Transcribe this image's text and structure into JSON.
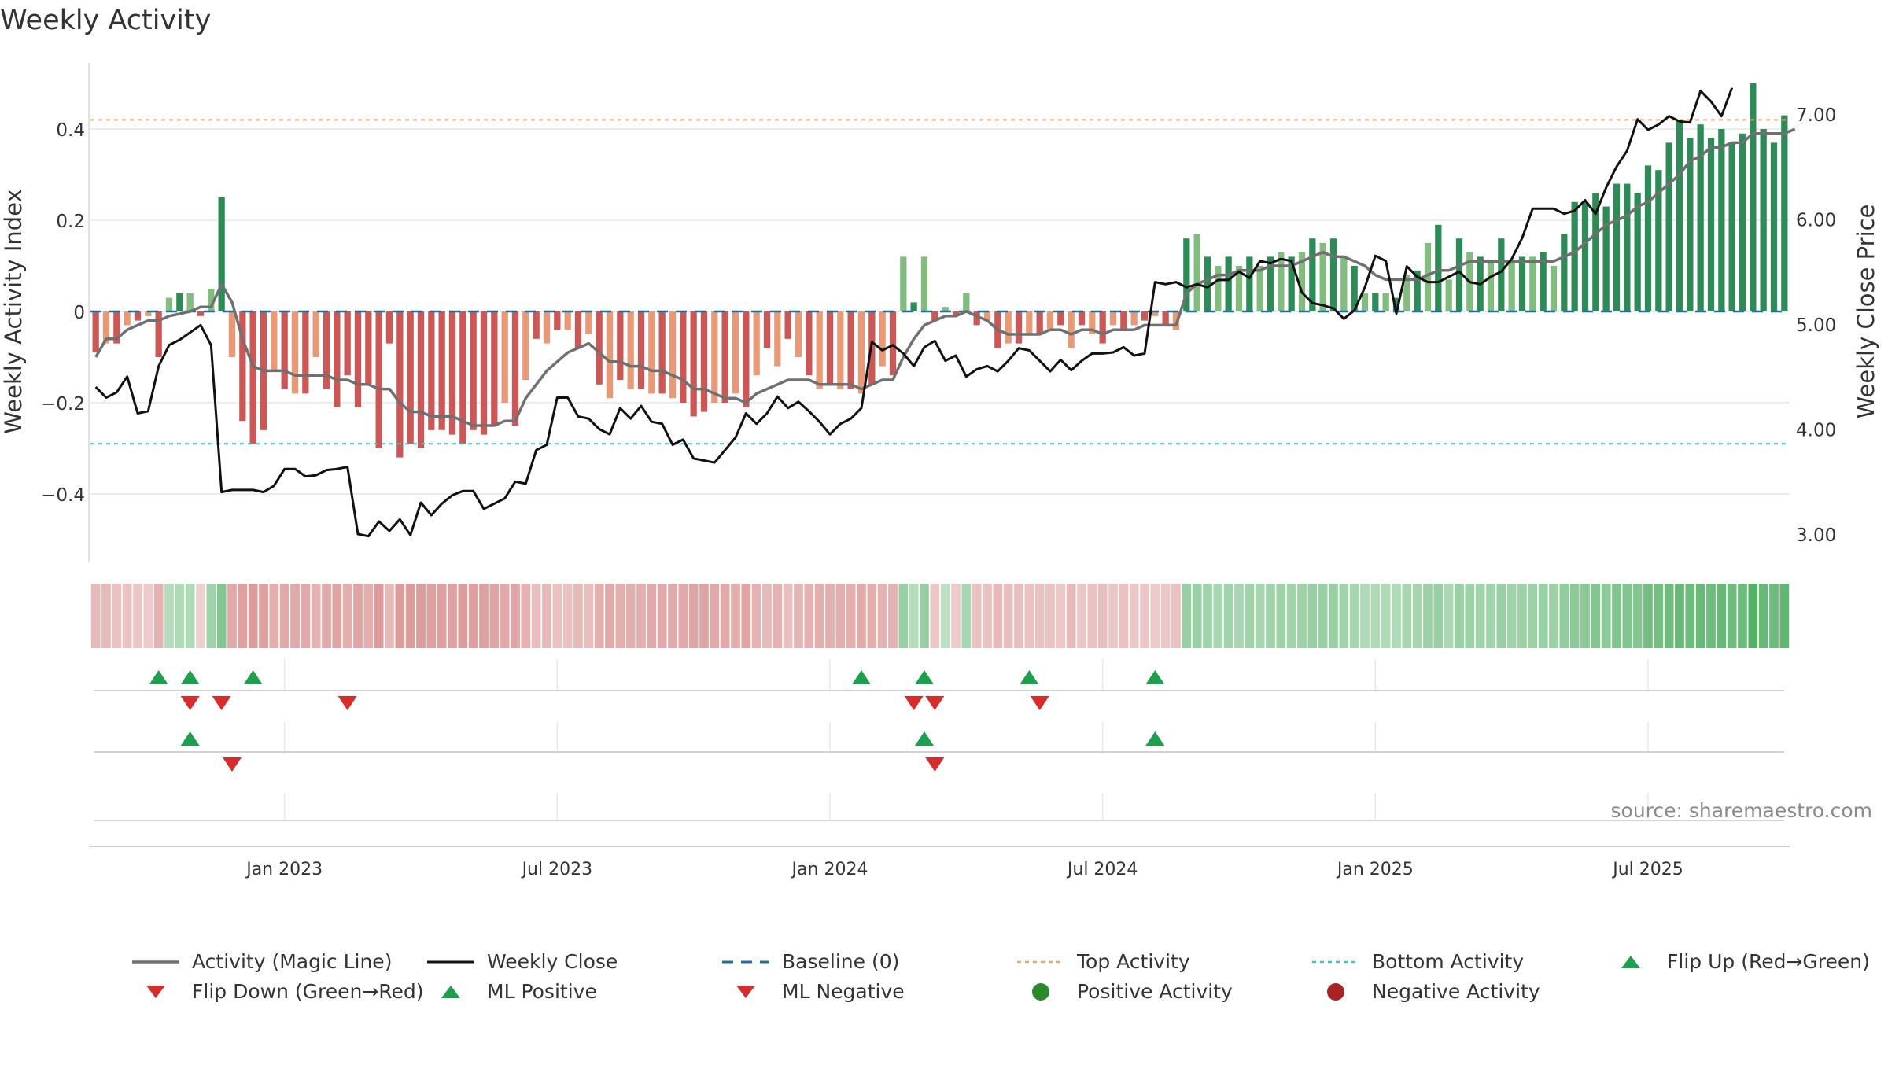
{
  "chart_data": {
    "type": "bar",
    "title": "Weekly Activity",
    "ylabel": "Weekly Activity Index",
    "y2label": "Weekly Close Price",
    "ylim": [
      -0.54,
      0.54
    ],
    "y2lim": [
      2.55,
      7.5
    ],
    "yticks": [
      {
        "value": 0.4,
        "label": "0.4"
      },
      {
        "value": 0.2,
        "label": "0.2"
      },
      {
        "value": 0,
        "label": "0"
      },
      {
        "value": -0.2,
        "label": "−0.2"
      },
      {
        "value": -0.4,
        "label": "−0.4"
      }
    ],
    "y2ticks": [
      {
        "value": 7.0,
        "label": "7.00"
      },
      {
        "value": 6.0,
        "label": "6.00"
      },
      {
        "value": 5.0,
        "label": "5.00"
      },
      {
        "value": 4.0,
        "label": "4.00"
      },
      {
        "value": 3.0,
        "label": "3.00"
      }
    ],
    "xticks": [
      {
        "week": 18,
        "label": "Jan 2023"
      },
      {
        "week": 44,
        "label": "Jul 2023"
      },
      {
        "week": 70,
        "label": "Jan 2024"
      },
      {
        "week": 96,
        "label": "Jul 2024"
      },
      {
        "week": 122,
        "label": "Jan 2025"
      },
      {
        "week": 148,
        "label": "Jul 2025"
      }
    ],
    "top_activity": 0.42,
    "bottom_activity": -0.29,
    "baseline": 0,
    "activity": [
      -0.09,
      -0.07,
      -0.07,
      -0.03,
      -0.02,
      -0.01,
      -0.1,
      0.03,
      0.04,
      0.04,
      -0.01,
      0.05,
      0.25,
      -0.1,
      -0.24,
      -0.29,
      -0.26,
      -0.13,
      -0.17,
      -0.18,
      -0.18,
      -0.1,
      -0.17,
      -0.21,
      -0.14,
      -0.21,
      -0.16,
      -0.3,
      -0.07,
      -0.32,
      -0.29,
      -0.3,
      -0.26,
      -0.26,
      -0.27,
      -0.29,
      -0.26,
      -0.27,
      -0.25,
      -0.2,
      -0.25,
      -0.15,
      -0.06,
      -0.07,
      -0.04,
      -0.04,
      -0.08,
      -0.05,
      -0.16,
      -0.19,
      -0.15,
      -0.17,
      -0.17,
      -0.18,
      -0.18,
      -0.19,
      -0.2,
      -0.23,
      -0.22,
      -0.2,
      -0.2,
      -0.18,
      -0.21,
      -0.14,
      -0.08,
      -0.12,
      -0.06,
      -0.1,
      -0.14,
      -0.17,
      -0.16,
      -0.17,
      -0.17,
      -0.18,
      -0.16,
      -0.12,
      -0.14,
      0.12,
      0.02,
      0.12,
      -0.02,
      0.01,
      -0.01,
      0.04,
      -0.03,
      -0.02,
      -0.08,
      -0.07,
      -0.07,
      -0.05,
      -0.05,
      -0.04,
      -0.03,
      -0.08,
      -0.03,
      -0.05,
      -0.07,
      -0.03,
      -0.04,
      -0.03,
      -0.02,
      -0.01,
      -0.03,
      -0.04,
      0.16,
      0.17,
      0.12,
      0.1,
      0.12,
      0.1,
      0.12,
      0.1,
      0.12,
      0.13,
      0.12,
      0.13,
      0.16,
      0.15,
      0.16,
      0.12,
      0.1,
      0.04,
      0.04,
      0.04,
      0.03,
      0.08,
      0.09,
      0.15,
      0.19,
      0.07,
      0.16,
      0.13,
      0.12,
      0.11,
      0.16,
      0.11,
      0.12,
      0.12,
      0.13,
      0.1,
      0.17,
      0.24,
      0.24,
      0.26,
      0.23,
      0.28,
      0.28,
      0.26,
      0.32,
      0.31,
      0.37,
      0.42,
      0.38,
      0.41,
      0.38,
      0.4,
      0.37,
      0.39,
      0.5,
      0.4,
      0.37,
      0.43
    ],
    "magic_line": [
      -0.1,
      -0.06,
      -0.06,
      -0.04,
      -0.03,
      -0.02,
      -0.02,
      -0.01,
      -0.005,
      0,
      0.01,
      0.01,
      0.06,
      0.02,
      -0.06,
      -0.12,
      -0.13,
      -0.13,
      -0.13,
      -0.14,
      -0.14,
      -0.14,
      -0.14,
      -0.15,
      -0.15,
      -0.16,
      -0.16,
      -0.17,
      -0.17,
      -0.2,
      -0.22,
      -0.22,
      -0.23,
      -0.23,
      -0.23,
      -0.24,
      -0.25,
      -0.25,
      -0.25,
      -0.24,
      -0.24,
      -0.19,
      -0.16,
      -0.13,
      -0.11,
      -0.09,
      -0.08,
      -0.07,
      -0.09,
      -0.11,
      -0.11,
      -0.12,
      -0.12,
      -0.13,
      -0.13,
      -0.14,
      -0.15,
      -0.17,
      -0.17,
      -0.18,
      -0.19,
      -0.19,
      -0.2,
      -0.18,
      -0.17,
      -0.16,
      -0.15,
      -0.15,
      -0.15,
      -0.16,
      -0.16,
      -0.16,
      -0.16,
      -0.17,
      -0.16,
      -0.15,
      -0.15,
      -0.1,
      -0.06,
      -0.03,
      -0.02,
      -0.01,
      -0.01,
      0,
      -0.01,
      -0.02,
      -0.04,
      -0.05,
      -0.05,
      -0.05,
      -0.05,
      -0.04,
      -0.04,
      -0.05,
      -0.04,
      -0.04,
      -0.05,
      -0.04,
      -0.04,
      -0.04,
      -0.03,
      -0.03,
      -0.03,
      -0.03,
      0.04,
      0.06,
      0.07,
      0.08,
      0.08,
      0.09,
      0.09,
      0.09,
      0.1,
      0.1,
      0.1,
      0.11,
      0.12,
      0.13,
      0.12,
      0.12,
      0.11,
      0.1,
      0.08,
      0.07,
      0.07,
      0.07,
      0.07,
      0.08,
      0.09,
      0.09,
      0.1,
      0.11,
      0.11,
      0.11,
      0.11,
      0.11,
      0.11,
      0.11,
      0.11,
      0.11,
      0.12,
      0.13,
      0.15,
      0.17,
      0.19,
      0.2,
      0.21,
      0.23,
      0.24,
      0.26,
      0.28,
      0.3,
      0.33,
      0.34,
      0.36,
      0.36,
      0.37,
      0.37,
      0.39,
      0.39,
      0.39,
      0.39,
      0.4
    ],
    "weekly_close": [
      4.4,
      4.3,
      4.35,
      4.5,
      4.15,
      4.17,
      4.6,
      4.8,
      4.85,
      4.92,
      4.99,
      4.8,
      3.4,
      3.42,
      3.42,
      3.42,
      3.4,
      3.46,
      3.62,
      3.62,
      3.55,
      3.56,
      3.61,
      3.62,
      3.64,
      3.0,
      2.98,
      3.12,
      3.03,
      3.14,
      2.99,
      3.3,
      3.18,
      3.29,
      3.37,
      3.41,
      3.41,
      3.24,
      3.29,
      3.34,
      3.5,
      3.48,
      3.8,
      3.85,
      4.3,
      4.3,
      4.12,
      4.1,
      4.0,
      3.95,
      4.2,
      4.1,
      4.22,
      4.07,
      4.05,
      3.85,
      3.9,
      3.72,
      3.7,
      3.68,
      3.8,
      3.92,
      4.15,
      4.05,
      4.15,
      4.31,
      4.2,
      4.26,
      4.17,
      4.07,
      3.95,
      4.05,
      4.1,
      4.2,
      4.83,
      4.75,
      4.8,
      4.72,
      4.6,
      4.78,
      4.84,
      4.65,
      4.7,
      4.5,
      4.57,
      4.6,
      4.55,
      4.65,
      4.77,
      4.75,
      4.65,
      4.55,
      4.66,
      4.56,
      4.65,
      4.72,
      4.72,
      4.73,
      4.78,
      4.7,
      4.72,
      5.4,
      5.38,
      5.4,
      5.35,
      5.38,
      5.35,
      5.42,
      5.42,
      5.5,
      5.44,
      5.6,
      5.58,
      5.62,
      5.6,
      5.3,
      5.2,
      5.18,
      5.15,
      5.05,
      5.13,
      5.35,
      5.65,
      5.6,
      5.1,
      5.55,
      5.45,
      5.4,
      5.4,
      5.45,
      5.5,
      5.4,
      5.38,
      5.45,
      5.5,
      5.62,
      5.82,
      6.1,
      6.1,
      6.1,
      6.05,
      6.08,
      6.18,
      6.05,
      6.3,
      6.5,
      6.65,
      6.95,
      6.85,
      6.9,
      6.98,
      6.93,
      6.92,
      7.22,
      7.12,
      6.98,
      7.25
    ],
    "heat_strength": [
      0.45,
      0.45,
      0.35,
      0.35,
      0.3,
      0.25,
      0.55,
      0.25,
      0.3,
      0.3,
      0.2,
      0.4,
      0.6,
      0.65,
      0.75,
      0.8,
      0.75,
      0.6,
      0.65,
      0.65,
      0.65,
      0.55,
      0.65,
      0.7,
      0.6,
      0.7,
      0.6,
      0.8,
      0.45,
      0.8,
      0.8,
      0.8,
      0.75,
      0.75,
      0.75,
      0.8,
      0.75,
      0.75,
      0.7,
      0.65,
      0.7,
      0.55,
      0.4,
      0.45,
      0.35,
      0.35,
      0.45,
      0.4,
      0.6,
      0.65,
      0.6,
      0.6,
      0.6,
      0.65,
      0.65,
      0.65,
      0.65,
      0.7,
      0.7,
      0.65,
      0.65,
      0.6,
      0.7,
      0.55,
      0.45,
      0.55,
      0.4,
      0.5,
      0.55,
      0.6,
      0.6,
      0.6,
      0.6,
      0.65,
      0.6,
      0.55,
      0.55,
      0.45,
      0.25,
      0.45,
      0.3,
      0.2,
      0.25,
      0.35,
      0.35,
      0.35,
      0.45,
      0.4,
      0.4,
      0.35,
      0.35,
      0.35,
      0.3,
      0.45,
      0.3,
      0.35,
      0.4,
      0.3,
      0.35,
      0.3,
      0.3,
      0.25,
      0.3,
      0.35,
      0.45,
      0.45,
      0.4,
      0.35,
      0.4,
      0.35,
      0.4,
      0.35,
      0.4,
      0.42,
      0.4,
      0.42,
      0.45,
      0.45,
      0.45,
      0.4,
      0.35,
      0.3,
      0.3,
      0.3,
      0.28,
      0.35,
      0.35,
      0.42,
      0.45,
      0.33,
      0.45,
      0.42,
      0.4,
      0.38,
      0.45,
      0.4,
      0.42,
      0.42,
      0.45,
      0.42,
      0.5,
      0.55,
      0.55,
      0.6,
      0.55,
      0.62,
      0.62,
      0.6,
      0.7,
      0.7,
      0.75,
      0.8,
      0.75,
      0.8,
      0.75,
      0.8,
      0.75,
      0.78,
      0.95,
      0.8,
      0.75,
      0.85
    ],
    "flip_up": [
      6,
      9,
      15,
      73,
      79,
      89,
      101
    ],
    "flip_down": [
      9,
      12,
      24,
      78,
      80,
      90
    ],
    "ml_positive": [
      9,
      79,
      101
    ],
    "ml_negative": [
      13,
      80
    ],
    "colors": {
      "positive_strong": "#2e8b57",
      "positive_light": "#82bc7f",
      "negative_strong": "#cc5757",
      "negative_light": "#e89a76",
      "magic_line": "#707070",
      "weekly_close": "#111111",
      "baseline": "#1f6f9e",
      "top_activity": "#e8a66a",
      "bottom_activity": "#3cc4d0",
      "flip_up": "#1e9e4f",
      "flip_down": "#d62c2c",
      "positive_dot": "#2a8a2a",
      "negative_dot": "#a82424",
      "grid": "#e6e6e6"
    },
    "legend": [
      {
        "key": "magic_line",
        "label": "Activity (Magic Line)"
      },
      {
        "key": "weekly_close",
        "label": "Weekly Close"
      },
      {
        "key": "baseline",
        "label": "Baseline (0)"
      },
      {
        "key": "top_activity",
        "label": "Top Activity"
      },
      {
        "key": "bottom_activity",
        "label": "Bottom Activity"
      },
      {
        "key": "flip_up",
        "label": "Flip Up (Red→Green)"
      },
      {
        "key": "flip_down",
        "label": "Flip Down (Green→Red)"
      },
      {
        "key": "ml_positive",
        "label": "ML Positive"
      },
      {
        "key": "ml_negative",
        "label": "ML Negative"
      },
      {
        "key": "positive_activity",
        "label": "Positive Activity"
      },
      {
        "key": "negative_activity",
        "label": "Negative Activity"
      }
    ],
    "source": "source: sharemaestro.com"
  }
}
